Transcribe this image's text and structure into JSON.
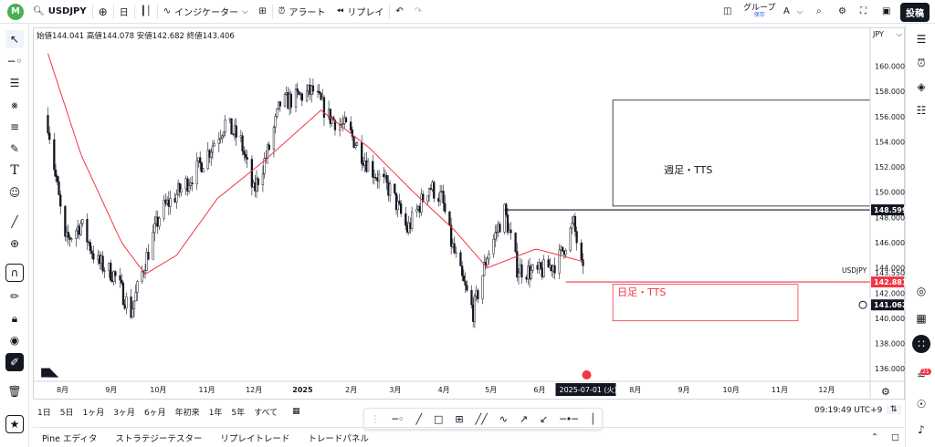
{
  "topbar": {
    "logo_letter": "M",
    "symbol": "USDJPY",
    "interval": "日",
    "indicators": "インジケーター",
    "alert": "アラート",
    "replay": "リプレイ",
    "group": "グループ",
    "group_sub": "保存",
    "group_letter": "A",
    "post": "投稿"
  },
  "ohlc": {
    "open_label": "始値",
    "open": "144.041",
    "high_label": "高値",
    "high": "144.078",
    "low_label": "安値",
    "low": "142.682",
    "close_label": "終値",
    "close": "143.406"
  },
  "currency": "JPY",
  "chart_data": {
    "type": "candlestick",
    "symbol": "USDJPY",
    "x_labels": [
      "8月",
      "9月",
      "10月",
      "11月",
      "12月",
      "2025",
      "2月",
      "3月",
      "4月",
      "5月",
      "6月",
      "2025-07-01 (火)",
      "8月",
      "9月",
      "10月",
      "11月",
      "12月"
    ],
    "y_ticks": [
      "160.000",
      "158.000",
      "156.000",
      "154.000",
      "152.000",
      "150.000",
      "148.000",
      "146.000",
      "144.000",
      "142.000",
      "140.000",
      "138.000",
      "136.000"
    ],
    "ylim": [
      135,
      163
    ],
    "close_approx": [
      {
        "t": "2024-07-25",
        "v": 155.5
      },
      {
        "t": "2024-08-05",
        "v": 146
      },
      {
        "t": "2024-08-15",
        "v": 147.5
      },
      {
        "t": "2024-08-25",
        "v": 144.5
      },
      {
        "t": "2024-09-05",
        "v": 143.5
      },
      {
        "t": "2024-09-16",
        "v": 140.5
      },
      {
        "t": "2024-09-25",
        "v": 144.5
      },
      {
        "t": "2024-10-05",
        "v": 148.5
      },
      {
        "t": "2024-10-20",
        "v": 150.5
      },
      {
        "t": "2024-11-01",
        "v": 152.5
      },
      {
        "t": "2024-11-15",
        "v": 155.5
      },
      {
        "t": "2024-11-25",
        "v": 154
      },
      {
        "t": "2024-12-03",
        "v": 150
      },
      {
        "t": "2024-12-13",
        "v": 153.5
      },
      {
        "t": "2024-12-20",
        "v": 157
      },
      {
        "t": "2025-01-10",
        "v": 158
      },
      {
        "t": "2025-01-20",
        "v": 156
      },
      {
        "t": "2025-02-01",
        "v": 155
      },
      {
        "t": "2025-02-15",
        "v": 152
      },
      {
        "t": "2025-03-01",
        "v": 150
      },
      {
        "t": "2025-03-11",
        "v": 147
      },
      {
        "t": "2025-03-25",
        "v": 150.5
      },
      {
        "t": "2025-04-02",
        "v": 149.5
      },
      {
        "t": "2025-04-08",
        "v": 146
      },
      {
        "t": "2025-04-15",
        "v": 143
      },
      {
        "t": "2025-04-22",
        "v": 140.5
      },
      {
        "t": "2025-05-01",
        "v": 145
      },
      {
        "t": "2025-05-12",
        "v": 148.5
      },
      {
        "t": "2025-05-20",
        "v": 144
      },
      {
        "t": "2025-06-01",
        "v": 143.5
      },
      {
        "t": "2025-06-15",
        "v": 144.5
      },
      {
        "t": "2025-06-25",
        "v": 147.5
      },
      {
        "t": "2025-07-01",
        "v": 143.4
      }
    ],
    "ma_approx": [
      {
        "t": "2024-07-25",
        "v": 161
      },
      {
        "t": "2024-08-15",
        "v": 153
      },
      {
        "t": "2024-09-10",
        "v": 146
      },
      {
        "t": "2024-09-25",
        "v": 143.5
      },
      {
        "t": "2024-10-15",
        "v": 145
      },
      {
        "t": "2024-11-10",
        "v": 149.5
      },
      {
        "t": "2024-12-10",
        "v": 152.5
      },
      {
        "t": "2025-01-15",
        "v": 156.5
      },
      {
        "t": "2025-02-15",
        "v": 153.5
      },
      {
        "t": "2025-03-15",
        "v": 150
      },
      {
        "t": "2025-04-10",
        "v": 147
      },
      {
        "t": "2025-05-01",
        "v": 144
      },
      {
        "t": "2025-06-01",
        "v": 145.5
      },
      {
        "t": "2025-07-01",
        "v": 144.5
      }
    ],
    "hlines": [
      {
        "label": "148.599",
        "price": 148.599,
        "from": "2025-05-12",
        "color": "#131722"
      },
      {
        "label": "142.881",
        "price": 142.881,
        "from": "2025-06-20",
        "color": "#f23645"
      }
    ],
    "price_tags": {
      "symbol": "USDJPY",
      "current": "143.550",
      "cursor": "141.062"
    },
    "annotations": [
      {
        "text": "週足・TTS",
        "color": "#131722"
      },
      {
        "text": "日足・TTS",
        "color": "#f23645"
      }
    ]
  },
  "ranges": [
    "1日",
    "5日",
    "1ヶ月",
    "3ヶ月",
    "6ヶ月",
    "年初来",
    "1年",
    "5年",
    "すべて"
  ],
  "clock": "09:19:49 UTC+9",
  "panels": [
    "Pine エディタ",
    "ストラテジーテスター",
    "リプレイトレード",
    "トレードパネル"
  ],
  "notifications_count": "21",
  "colors": {
    "price_line": "#131722",
    "ma": "#f23645",
    "logo": "#4caf50",
    "accent": "#2962ff"
  }
}
